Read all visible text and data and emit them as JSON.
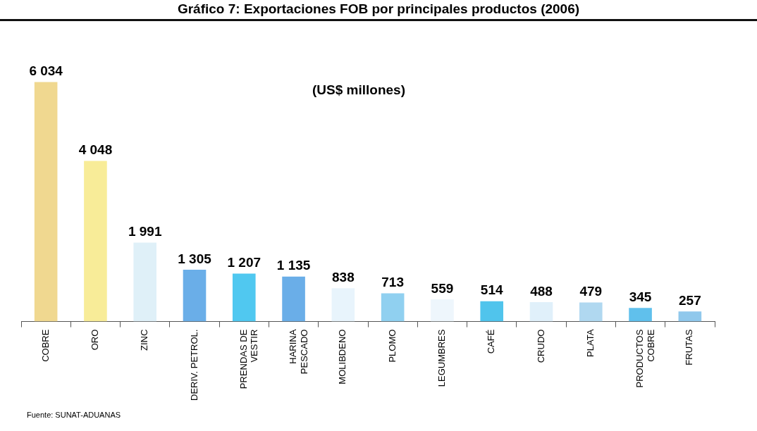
{
  "chart_data": {
    "type": "bar",
    "title": "Gráfico 7: Exportaciones FOB por principales productos (2006)",
    "categories": [
      "COBRE",
      "ORO",
      "ZINC",
      "DERIV. PETROL.",
      "PRENDAS DE VESTIR",
      "HARINA PESCADO",
      "MOLIBDENO",
      "PLOMO",
      "LEGUMBRES",
      "CAFÉ",
      "CRUDO",
      "PLATA",
      "PRODUCTOS COBRE",
      "FRUTAS"
    ],
    "values": [
      6034,
      4048,
      1991,
      1305,
      1207,
      1135,
      838,
      713,
      559,
      514,
      488,
      479,
      345,
      257
    ],
    "value_labels": [
      "6 034",
      "4 048",
      "1 991",
      "1 305",
      "1 207",
      "1 135",
      "838",
      "713",
      "559",
      "514",
      "488",
      "479",
      "345",
      "257"
    ],
    "colors": [
      "#f0d890",
      "#f8ec98",
      "#dff0f8",
      "#6aaee8",
      "#50c8f0",
      "#6aaee8",
      "#e8f4fc",
      "#90d0f0",
      "#eef6fc",
      "#50c4ec",
      "#e0f0fa",
      "#b0d8f0",
      "#60c0ec",
      "#90c8ec"
    ],
    "annotations": [
      "(US$ millones)",
      "Fuente: SUNAT-ADUANAS"
    ],
    "tick_labels": "x",
    "grid": false,
    "legend": false
  }
}
